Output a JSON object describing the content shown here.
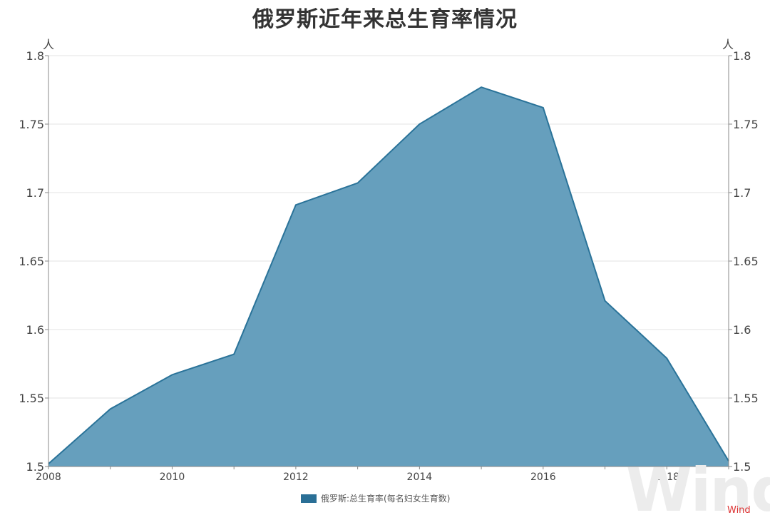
{
  "chart_data": {
    "type": "area",
    "title": "俄罗斯近年来总生育率情况",
    "x": [
      2008,
      2009,
      2010,
      2011,
      2012,
      2013,
      2014,
      2015,
      2016,
      2017,
      2018,
      2019
    ],
    "series": [
      {
        "name": "俄罗斯:总生育率(每名妇女生育数)",
        "values": [
          1.502,
          1.542,
          1.567,
          1.582,
          1.691,
          1.707,
          1.75,
          1.777,
          1.762,
          1.621,
          1.579,
          1.504
        ]
      }
    ],
    "xlim": [
      2008,
      2019
    ],
    "ylim": [
      1.5,
      1.8
    ],
    "x_ticks": [
      2008,
      2010,
      2012,
      2014,
      2016,
      2018
    ],
    "y_ticks": [
      "1.5",
      "1.55",
      "1.6",
      "1.65",
      "1.7",
      "1.75",
      "1.8"
    ],
    "y_unit_left": "人",
    "y_unit_right": "人",
    "grid": true,
    "legend_position": "bottom-center"
  },
  "colors": {
    "fill": "#669fbd",
    "line": "#2a7399",
    "swatch": "#2a6f96",
    "grid": "#e3e3e3",
    "axis": "#888888"
  },
  "footer": {
    "watermark": "Wind",
    "source": "Wind"
  }
}
